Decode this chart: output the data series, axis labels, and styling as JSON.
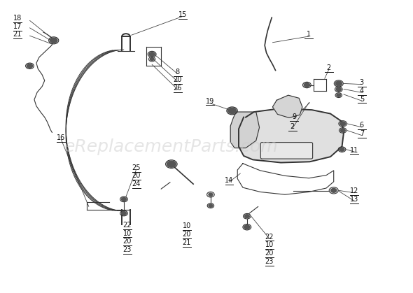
{
  "background_color": "#ffffff",
  "watermark_text": "eReplacementParts.com",
  "watermark_color": "#cccccc",
  "watermark_fontsize": 18,
  "line_color": "#333333",
  "label_color": "#111111",
  "label_fontsize": 7,
  "fig_width": 5.9,
  "fig_height": 4.19,
  "dpi": 100
}
